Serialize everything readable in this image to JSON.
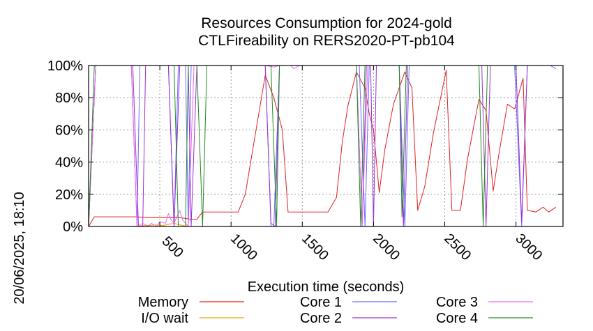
{
  "chart_data": {
    "type": "line",
    "title": [
      "Resources Consumption for 2024-gold",
      "CTLFireability on RERS2020-PT-pb104"
    ],
    "xlabel": "Execution time (seconds)",
    "ylabel": "",
    "side_label": "20/06/2025, 18:10",
    "xlim": [
      0,
      3330
    ],
    "ylim": [
      0,
      100
    ],
    "x_ticks": [
      500,
      1000,
      1500,
      2000,
      2500,
      3000
    ],
    "x_tick_labels": [
      "500",
      "1000",
      "1500",
      "2000",
      "2500",
      "3000"
    ],
    "y_ticks": [
      0,
      20,
      40,
      60,
      80,
      100
    ],
    "y_tick_labels": [
      "0%",
      "20%",
      "40%",
      "60%",
      "80%",
      "100%"
    ],
    "grid": true,
    "legend_position": "bottom",
    "series": [
      {
        "name": "Memory",
        "color": "#e02020",
        "points": [
          [
            0,
            0
          ],
          [
            40,
            6
          ],
          [
            80,
            6
          ],
          [
            160,
            6
          ],
          [
            240,
            6
          ],
          [
            320,
            6
          ],
          [
            400,
            5.5
          ],
          [
            480,
            5.5
          ],
          [
            560,
            5.5
          ],
          [
            640,
            5.5
          ],
          [
            720,
            4.5
          ],
          [
            760,
            4.5
          ],
          [
            800,
            9
          ],
          [
            880,
            9
          ],
          [
            960,
            9
          ],
          [
            1050,
            9
          ],
          [
            1100,
            20
          ],
          [
            1160,
            52
          ],
          [
            1240,
            94
          ],
          [
            1300,
            80
          ],
          [
            1360,
            60
          ],
          [
            1400,
            9
          ],
          [
            1500,
            9
          ],
          [
            1600,
            9
          ],
          [
            1680,
            9
          ],
          [
            1740,
            18
          ],
          [
            1780,
            52
          ],
          [
            1820,
            75
          ],
          [
            1880,
            96
          ],
          [
            1940,
            86
          ],
          [
            1970,
            70
          ],
          [
            2000,
            60
          ],
          [
            2040,
            21
          ],
          [
            2080,
            48
          ],
          [
            2140,
            76
          ],
          [
            2220,
            96
          ],
          [
            2270,
            86
          ],
          [
            2310,
            10
          ],
          [
            2360,
            25
          ],
          [
            2420,
            58
          ],
          [
            2510,
            97
          ],
          [
            2550,
            10
          ],
          [
            2610,
            10
          ],
          [
            2660,
            42
          ],
          [
            2740,
            79
          ],
          [
            2790,
            72
          ],
          [
            2840,
            22
          ],
          [
            2880,
            45
          ],
          [
            2940,
            76
          ],
          [
            2990,
            73
          ],
          [
            3050,
            92
          ],
          [
            3080,
            10
          ],
          [
            3140,
            9
          ],
          [
            3190,
            12
          ],
          [
            3230,
            9
          ],
          [
            3280,
            12
          ]
        ]
      },
      {
        "name": "I/O wait",
        "color": "#e8a000",
        "points": [
          [
            0,
            0
          ],
          [
            100,
            0
          ],
          [
            200,
            0
          ],
          [
            300,
            0
          ],
          [
            400,
            0.5
          ],
          [
            480,
            1
          ],
          [
            520,
            0.5
          ],
          [
            600,
            2
          ],
          [
            640,
            1
          ],
          [
            700,
            0
          ],
          [
            800,
            0
          ],
          [
            1000,
            0
          ],
          [
            1500,
            0
          ],
          [
            2000,
            0
          ],
          [
            2500,
            0
          ],
          [
            3000,
            0
          ],
          [
            3280,
            0
          ]
        ]
      },
      {
        "name": "Core 1",
        "color": "#6a6aff",
        "points": [
          [
            0,
            0
          ],
          [
            50,
            100
          ],
          [
            300,
            100
          ],
          [
            340,
            0
          ],
          [
            360,
            100
          ],
          [
            560,
            100
          ],
          [
            600,
            0
          ],
          [
            630,
            100
          ],
          [
            680,
            100
          ],
          [
            700,
            0
          ],
          [
            720,
            100
          ],
          [
            1240,
            100
          ],
          [
            1280,
            0
          ],
          [
            1300,
            0
          ],
          [
            1340,
            100
          ],
          [
            1460,
            100
          ],
          [
            1540,
            100
          ],
          [
            1900,
            100
          ],
          [
            1940,
            0
          ],
          [
            1970,
            100
          ],
          [
            2180,
            100
          ],
          [
            2220,
            0
          ],
          [
            2250,
            100
          ],
          [
            2520,
            100
          ],
          [
            2800,
            100
          ],
          [
            2880,
            100
          ],
          [
            2990,
            100
          ],
          [
            3040,
            0
          ],
          [
            3080,
            100
          ],
          [
            3240,
            100
          ],
          [
            3280,
            98
          ]
        ]
      },
      {
        "name": "Core 2",
        "color": "#9a2fd4",
        "points": [
          [
            0,
            0
          ],
          [
            50,
            100
          ],
          [
            310,
            100
          ],
          [
            350,
            0
          ],
          [
            380,
            0
          ],
          [
            400,
            100
          ],
          [
            560,
            100
          ],
          [
            600,
            0
          ],
          [
            640,
            100
          ],
          [
            700,
            100
          ],
          [
            720,
            0
          ],
          [
            760,
            100
          ],
          [
            1240,
            100
          ],
          [
            1280,
            2
          ],
          [
            1310,
            0
          ],
          [
            1340,
            100
          ],
          [
            1880,
            100
          ],
          [
            1920,
            0
          ],
          [
            1950,
            100
          ],
          [
            1980,
            100
          ],
          [
            2000,
            0
          ],
          [
            2020,
            100
          ],
          [
            2180,
            100
          ],
          [
            2210,
            0
          ],
          [
            2240,
            100
          ],
          [
            2760,
            100
          ],
          [
            2790,
            0
          ],
          [
            2820,
            100
          ],
          [
            3000,
            100
          ],
          [
            3040,
            3
          ],
          [
            3080,
            100
          ],
          [
            3280,
            100
          ]
        ]
      },
      {
        "name": "Core 3",
        "color": "#ee66ee",
        "points": [
          [
            0,
            0
          ],
          [
            50,
            100
          ],
          [
            300,
            100
          ],
          [
            340,
            0
          ],
          [
            380,
            2
          ],
          [
            420,
            0
          ],
          [
            440,
            2
          ],
          [
            480,
            0
          ],
          [
            500,
            3
          ],
          [
            540,
            2
          ],
          [
            560,
            8
          ],
          [
            580,
            4
          ],
          [
            600,
            2
          ],
          [
            640,
            10
          ],
          [
            660,
            4
          ],
          [
            700,
            0
          ],
          [
            740,
            100
          ],
          [
            1240,
            100
          ],
          [
            1300,
            99
          ],
          [
            1340,
            100
          ],
          [
            1420,
            100
          ],
          [
            1440,
            98
          ],
          [
            1480,
            100
          ],
          [
            1880,
            100
          ],
          [
            1920,
            0
          ],
          [
            1960,
            100
          ],
          [
            2200,
            100
          ],
          [
            2230,
            100
          ],
          [
            2300,
            100
          ],
          [
            2820,
            100
          ],
          [
            2860,
            100
          ],
          [
            3040,
            100
          ],
          [
            3280,
            100
          ]
        ]
      },
      {
        "name": "Core 4",
        "color": "#208a20",
        "points": [
          [
            0,
            0
          ],
          [
            40,
            100
          ],
          [
            600,
            100
          ],
          [
            630,
            0
          ],
          [
            680,
            0
          ],
          [
            700,
            100
          ],
          [
            760,
            100
          ],
          [
            800,
            0
          ],
          [
            830,
            100
          ],
          [
            1280,
            100
          ],
          [
            1320,
            0
          ],
          [
            1340,
            100
          ],
          [
            1880,
            100
          ],
          [
            1910,
            0
          ],
          [
            1940,
            100
          ],
          [
            2180,
            100
          ],
          [
            2200,
            6
          ],
          [
            2230,
            100
          ],
          [
            2740,
            100
          ],
          [
            2770,
            0
          ],
          [
            2800,
            100
          ],
          [
            3280,
            100
          ]
        ]
      }
    ]
  }
}
